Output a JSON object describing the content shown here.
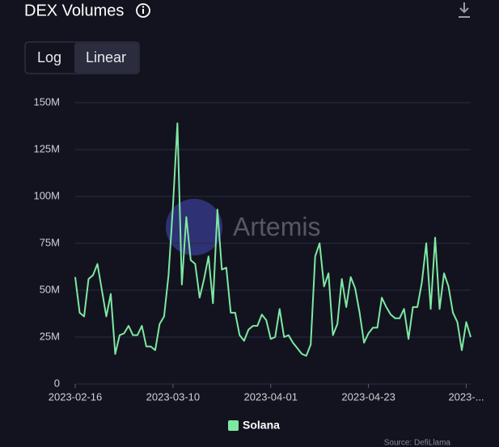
{
  "header": {
    "title": "DEX Volumes",
    "scale_options": [
      "Log",
      "Linear"
    ]
  },
  "watermark": "Artemis",
  "source": "Source: DefiLlama",
  "chart_data": {
    "type": "line",
    "log_scale": false,
    "grid": true,
    "x": [
      "2023-02-16",
      "2023-02-17",
      "2023-02-18",
      "2023-02-19",
      "2023-02-20",
      "2023-02-21",
      "2023-02-22",
      "2023-02-23",
      "2023-02-24",
      "2023-02-25",
      "2023-02-26",
      "2023-02-27",
      "2023-02-28",
      "2023-03-01",
      "2023-03-02",
      "2023-03-03",
      "2023-03-04",
      "2023-03-05",
      "2023-03-06",
      "2023-03-07",
      "2023-03-08",
      "2023-03-09",
      "2023-03-10",
      "2023-03-11",
      "2023-03-12",
      "2023-03-13",
      "2023-03-14",
      "2023-03-15",
      "2023-03-16",
      "2023-03-17",
      "2023-03-18",
      "2023-03-19",
      "2023-03-20",
      "2023-03-21",
      "2023-03-22",
      "2023-03-23",
      "2023-03-24",
      "2023-03-25",
      "2023-03-26",
      "2023-03-27",
      "2023-03-28",
      "2023-03-29",
      "2023-03-30",
      "2023-03-31",
      "2023-04-01",
      "2023-04-02",
      "2023-04-03",
      "2023-04-04",
      "2023-04-05",
      "2023-04-06",
      "2023-04-07",
      "2023-04-08",
      "2023-04-09",
      "2023-04-10",
      "2023-04-11",
      "2023-04-12",
      "2023-04-13",
      "2023-04-14",
      "2023-04-15",
      "2023-04-16",
      "2023-04-17",
      "2023-04-18",
      "2023-04-19",
      "2023-04-20",
      "2023-04-21",
      "2023-04-22",
      "2023-04-23",
      "2023-04-24",
      "2023-04-25",
      "2023-04-26",
      "2023-04-27",
      "2023-04-28",
      "2023-04-29",
      "2023-04-30",
      "2023-05-01",
      "2023-05-02",
      "2023-05-03",
      "2023-05-04",
      "2023-05-05",
      "2023-05-06",
      "2023-05-07",
      "2023-05-08",
      "2023-05-09",
      "2023-05-10",
      "2023-05-11",
      "2023-05-12",
      "2023-05-13",
      "2023-05-14",
      "2023-05-15",
      "2023-05-16"
    ],
    "series": [
      {
        "name": "Solana",
        "color": "#7ee8a2",
        "values": [
          57000000,
          38000000,
          36000000,
          56000000,
          58000000,
          64000000,
          50000000,
          36000000,
          48000000,
          16000000,
          26000000,
          27000000,
          31000000,
          26000000,
          26000000,
          31000000,
          20000000,
          20000000,
          18000000,
          32000000,
          36000000,
          58000000,
          95000000,
          139000000,
          53000000,
          89000000,
          66000000,
          64000000,
          46000000,
          56000000,
          68000000,
          43000000,
          93000000,
          61000000,
          62000000,
          38000000,
          38000000,
          26000000,
          23000000,
          29000000,
          31000000,
          31000000,
          37000000,
          34000000,
          24000000,
          25000000,
          40000000,
          25000000,
          26000000,
          22000000,
          19000000,
          16000000,
          15000000,
          21000000,
          68000000,
          75000000,
          52000000,
          59000000,
          26000000,
          32000000,
          56000000,
          41000000,
          57000000,
          51000000,
          38000000,
          22000000,
          27000000,
          30000000,
          30000000,
          46000000,
          41000000,
          37000000,
          35000000,
          35000000,
          40000000,
          24000000,
          41000000,
          41000000,
          54000000,
          75000000,
          40000000,
          78000000,
          40000000,
          59000000,
          52000000,
          38000000,
          33000000,
          18000000,
          33000000,
          25000000
        ]
      }
    ],
    "ylim": [
      0,
      150000000
    ],
    "yticks": [
      0,
      {
        "value": 25000000,
        "label": "25M"
      },
      {
        "value": 50000000,
        "label": "50M"
      },
      {
        "value": 75000000,
        "label": "75M"
      },
      {
        "value": 100000000,
        "label": "100M"
      },
      {
        "value": 125000000,
        "label": "125M"
      },
      {
        "value": 150000000,
        "label": "150M"
      }
    ],
    "xticks": [
      "2023-02-16",
      "2023-03-10",
      "2023-04-01",
      "2023-04-23",
      {
        "value": "2023-05-15",
        "label": "2023-..."
      }
    ]
  }
}
